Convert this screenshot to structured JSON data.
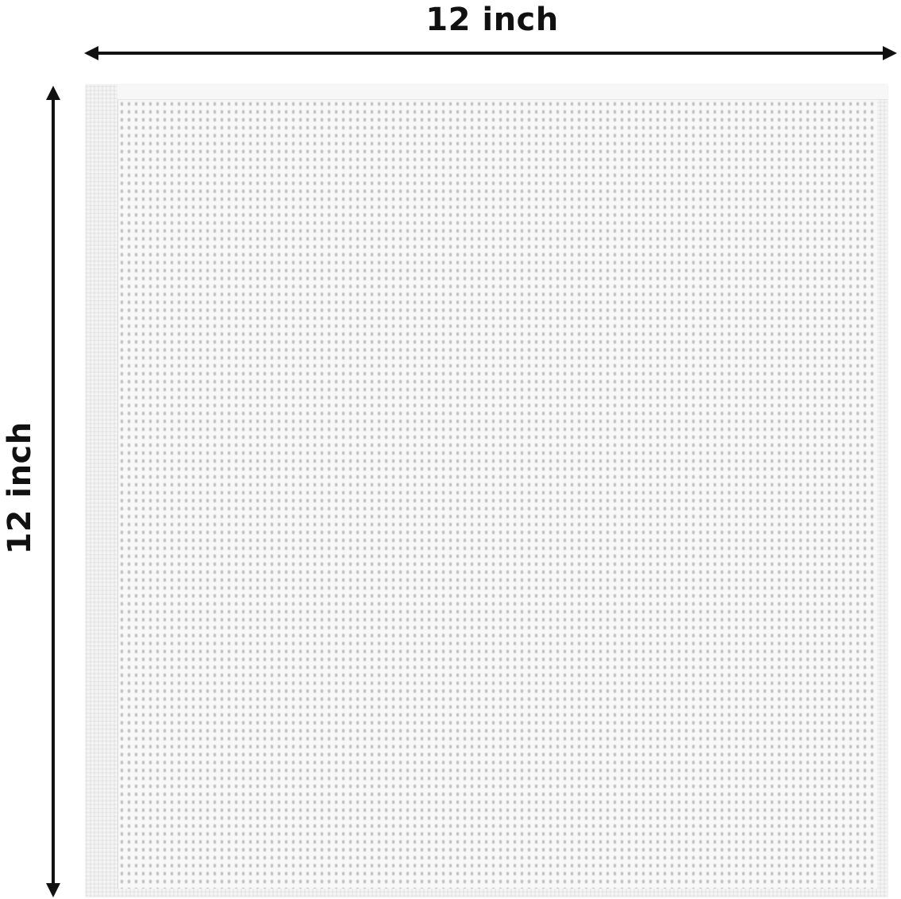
{
  "dimensions": {
    "width_label": "12 inch",
    "height_label": "12 inch"
  },
  "product": {
    "type": "waffle weave towel",
    "color": "#f4f4f4"
  },
  "arrow_color": "#111111"
}
